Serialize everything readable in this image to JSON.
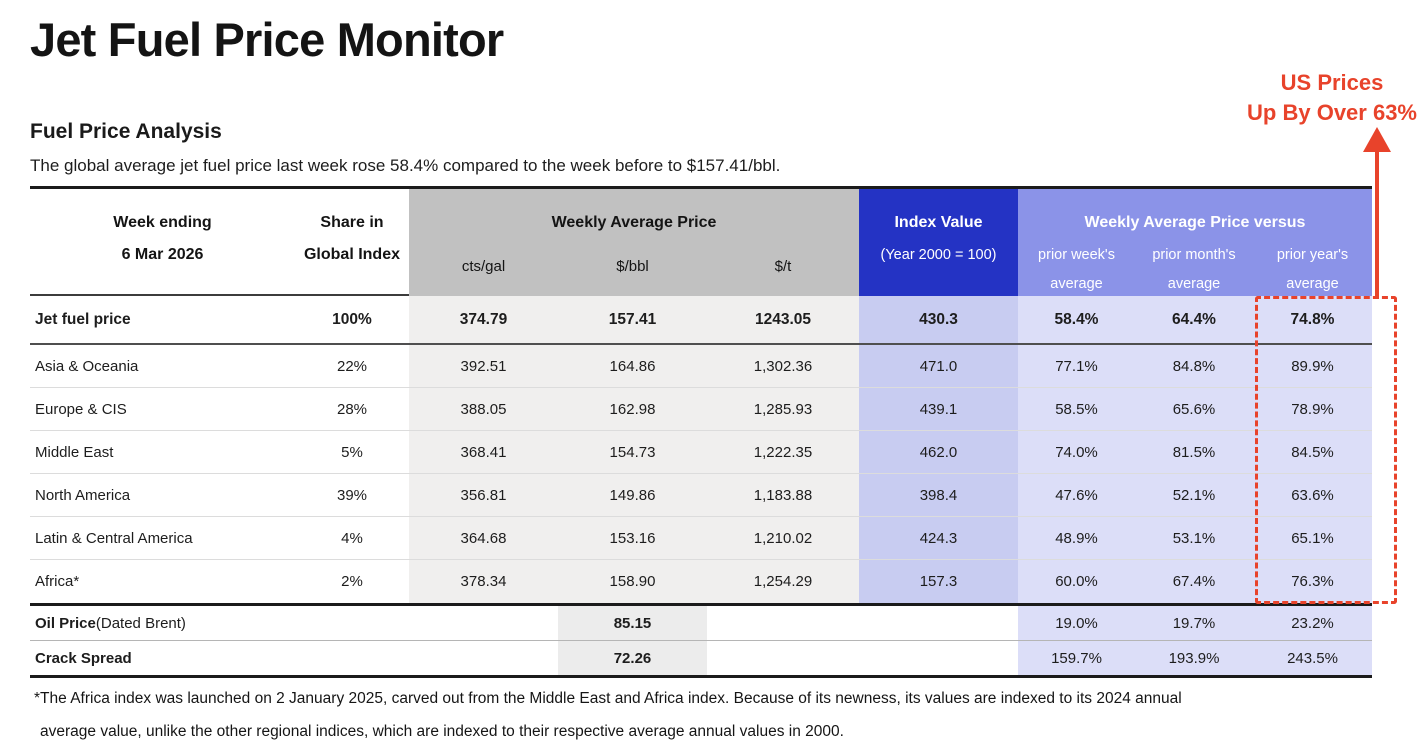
{
  "page": {
    "title": "Jet Fuel Price Monitor",
    "section_heading": "Fuel Price Analysis",
    "intro": "The global average jet fuel price last week rose 58.4% compared to the week before to $157.41/bbl.",
    "footnote_line1": "*The Africa index was launched on 2 January 2025, carved out from the Middle East and Africa index. Because of its newness, its values are indexed  to its 2024 annual",
    "footnote_line2": "average value, unlike the other regional indices, which are indexed to their respective average annual values in 2000."
  },
  "annotation": {
    "line1": "US Prices",
    "line2": "Up By Over 63%"
  },
  "colors": {
    "accent_red": "#e8432b",
    "header_dark_blue": "#2433c4",
    "header_light_blue": "#8b93e8",
    "index_column_fill": "#c8ccf1",
    "versus_column_fill": "#dcdef8",
    "gray_header": "#c1c1c1",
    "gray_column_fill": "#f0efee"
  },
  "table": {
    "header": {
      "week_ending_line1": "Week ending",
      "week_ending_line2": "6 Mar 2026",
      "share_line1": "Share in",
      "share_line2": "Global Index",
      "weekly_avg_group": "Weekly Average Price",
      "unit_cts": "cts/gal",
      "unit_bbl": "$/bbl",
      "unit_t": "$/t",
      "index_value_line1": "Index Value",
      "index_value_line2": "(Year 2000 = 100)",
      "versus_group": "Weekly Average Price versus",
      "vs_week_l1": "prior week's",
      "vs_week_l2": "average",
      "vs_month_l1": "prior month's",
      "vs_month_l2": "average",
      "vs_year_l1": "prior year's",
      "vs_year_l2": "average"
    },
    "jet": {
      "label": "Jet fuel price",
      "share": "100%",
      "cts": "374.79",
      "bbl": "157.41",
      "t": "1243.05",
      "index": "430.3",
      "vs_week": "58.4%",
      "vs_month": "64.4%",
      "vs_year": "74.8%"
    },
    "regions": [
      {
        "label": "Asia & Oceania",
        "share": "22%",
        "cts": "392.51",
        "bbl": "164.86",
        "t": "1,302.36",
        "index": "471.0",
        "vs_week": "77.1%",
        "vs_month": "84.8%",
        "vs_year": "89.9%"
      },
      {
        "label": "Europe & CIS",
        "share": "28%",
        "cts": "388.05",
        "bbl": "162.98",
        "t": "1,285.93",
        "index": "439.1",
        "vs_week": "58.5%",
        "vs_month": "65.6%",
        "vs_year": "78.9%"
      },
      {
        "label": "Middle East",
        "share": "5%",
        "cts": "368.41",
        "bbl": "154.73",
        "t": "1,222.35",
        "index": "462.0",
        "vs_week": "74.0%",
        "vs_month": "81.5%",
        "vs_year": "84.5%"
      },
      {
        "label": "North America",
        "share": "39%",
        "cts": "356.81",
        "bbl": "149.86",
        "t": "1,183.88",
        "index": "398.4",
        "vs_week": "47.6%",
        "vs_month": "52.1%",
        "vs_year": "63.6%"
      },
      {
        "label": "Latin & Central America",
        "share": "4%",
        "cts": "364.68",
        "bbl": "153.16",
        "t": "1,210.02",
        "index": "424.3",
        "vs_week": "48.9%",
        "vs_month": "53.1%",
        "vs_year": "65.1%"
      },
      {
        "label": "Africa*",
        "share": "2%",
        "cts": "378.34",
        "bbl": "158.90",
        "t": "1,254.29",
        "index": "157.3",
        "vs_week": "60.0%",
        "vs_month": "67.4%",
        "vs_year": "76.3%"
      }
    ],
    "oil": {
      "label_bold": "Oil Price",
      "label_rest": " (Dated Brent)",
      "bbl": "85.15",
      "vs_week": "19.0%",
      "vs_month": "19.7%",
      "vs_year": "23.2%"
    },
    "crack": {
      "label_bold": "Crack Spread",
      "label_rest": "",
      "bbl": "72.26",
      "vs_week": "159.7%",
      "vs_month": "193.9%",
      "vs_year": "243.5%"
    }
  }
}
